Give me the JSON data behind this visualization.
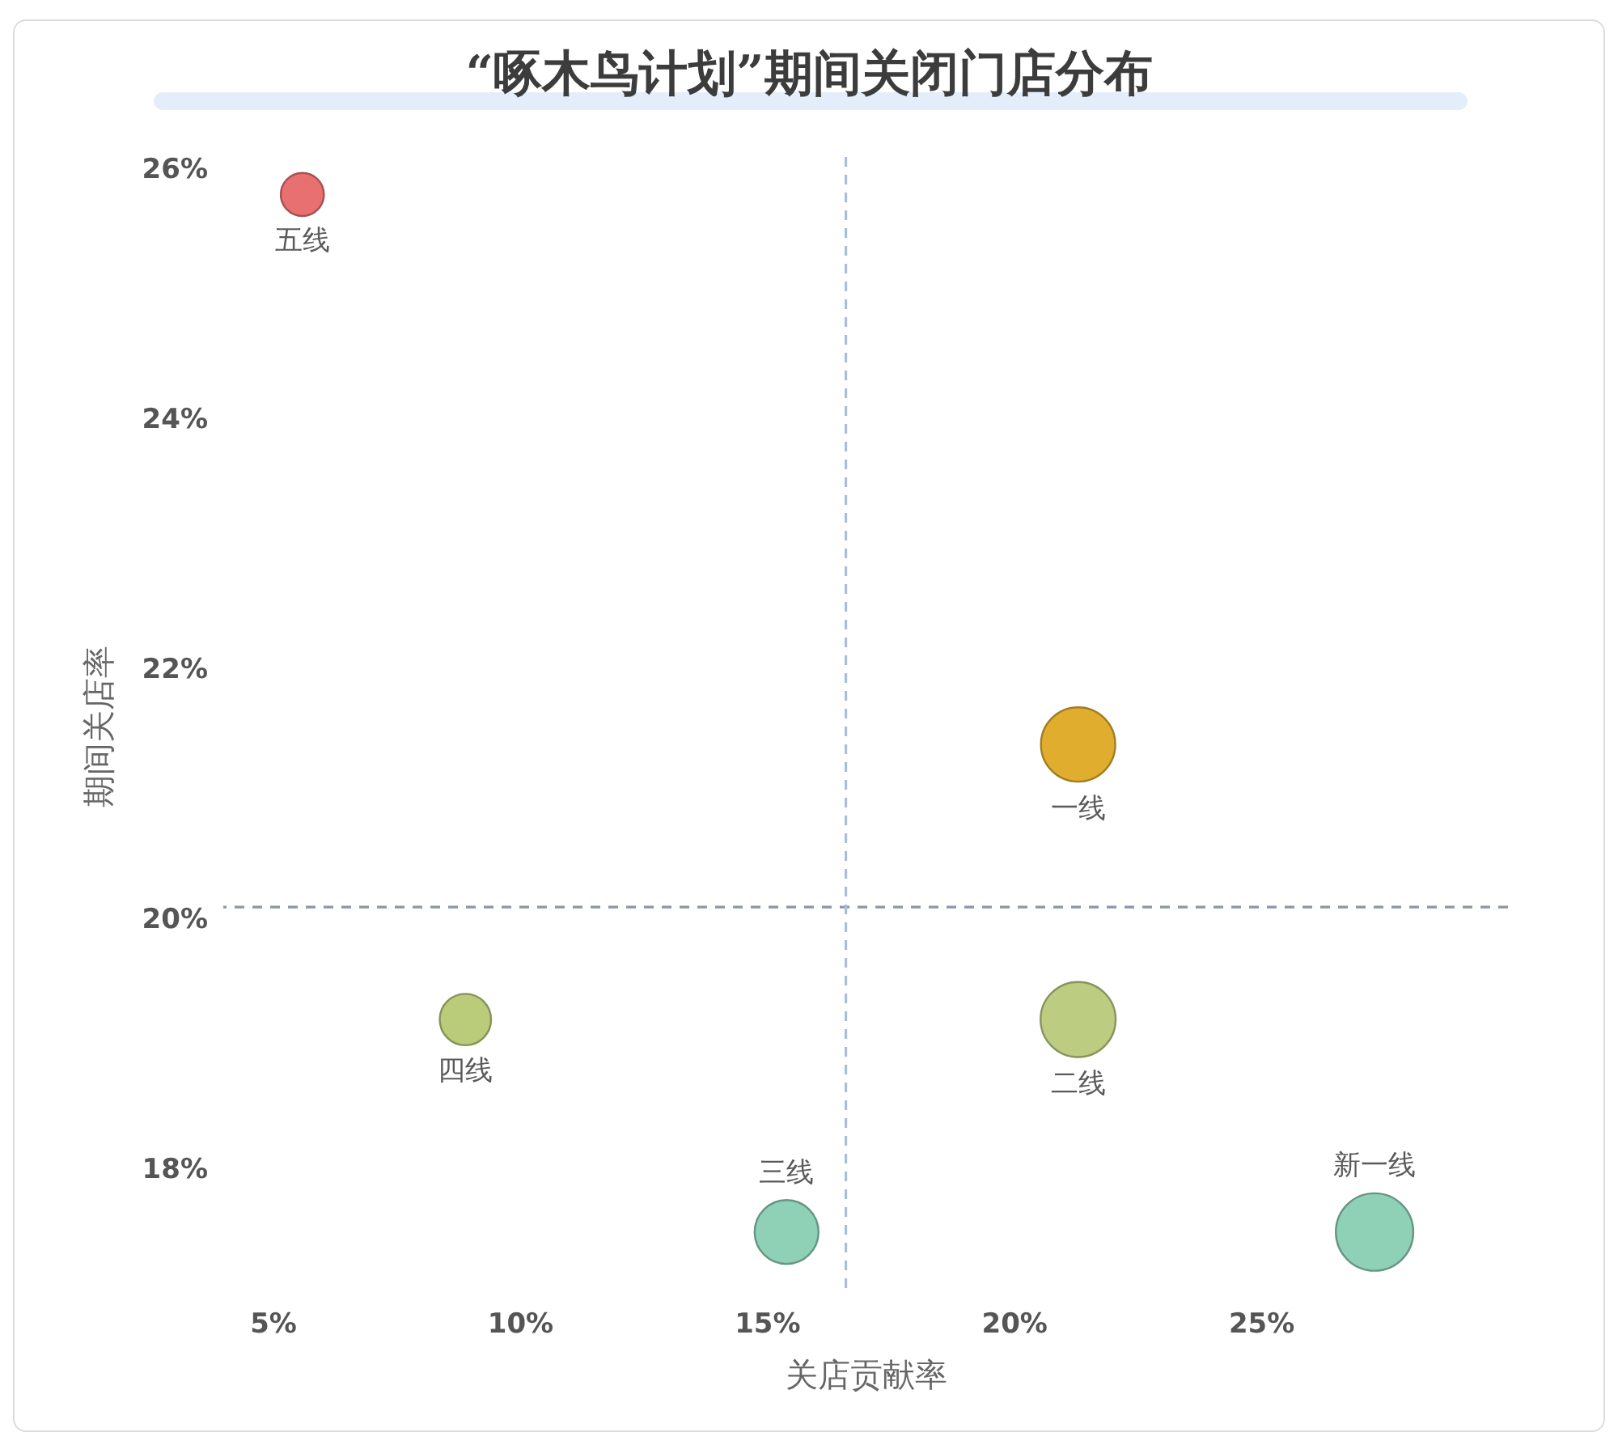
{
  "chart_data": {
    "type": "bubble",
    "title": "“啄木鸟计划”期间关闭门店分布",
    "xlabel": "关店贡献率",
    "ylabel": "期间关店率",
    "series": [
      {
        "name": "五线",
        "color": "#e87070",
        "x": [
          5.6
        ],
        "values": [
          25.8
        ],
        "sizes": [
          0.31
        ]
      },
      {
        "name": "四线",
        "color": "#bacc7a",
        "x": [
          8.9
        ],
        "values": [
          19.2
        ],
        "sizes": [
          0.44
        ]
      },
      {
        "name": "三线",
        "color": "#8fd1b7",
        "x": [
          15.4
        ],
        "values": [
          17.5
        ],
        "sizes": [
          0.68
        ]
      },
      {
        "name": "一线",
        "color": "#e0ad2e",
        "x": [
          21.3
        ],
        "values": [
          21.4
        ],
        "sizes": [
          0.92
        ]
      },
      {
        "name": "二线",
        "color": "#bccc80",
        "x": [
          21.3
        ],
        "values": [
          19.2
        ],
        "sizes": [
          0.94
        ]
      },
      {
        "name": "新一线",
        "color": "#8fd1b7",
        "x": [
          27.3
        ],
        "values": [
          17.5
        ],
        "sizes": [
          1
        ]
      }
    ],
    "xlim": [
      4,
      30
    ],
    "xticks": [
      {
        "value": 5,
        "label": "5%"
      },
      {
        "value": 10,
        "label": "10%"
      },
      {
        "value": 15,
        "label": "15%"
      },
      {
        "value": 20,
        "label": "20%"
      },
      {
        "value": 25,
        "label": "25%"
      }
    ],
    "ylim": [
      17,
      26.1
    ],
    "yticks": [
      {
        "value": 18,
        "label": "18%"
      },
      {
        "value": 20,
        "label": "20%"
      },
      {
        "value": 22,
        "label": "22%"
      },
      {
        "value": 24,
        "label": "24%"
      },
      {
        "value": 26,
        "label": "26%"
      }
    ],
    "ref_lines": [
      {
        "axis": "y",
        "value": 20.1,
        "color": "#8c96a8",
        "line_style": "dashed"
      },
      {
        "axis": "x",
        "value": 16.6,
        "color": "#a8bfd8",
        "line_style": "dashed"
      }
    ]
  }
}
